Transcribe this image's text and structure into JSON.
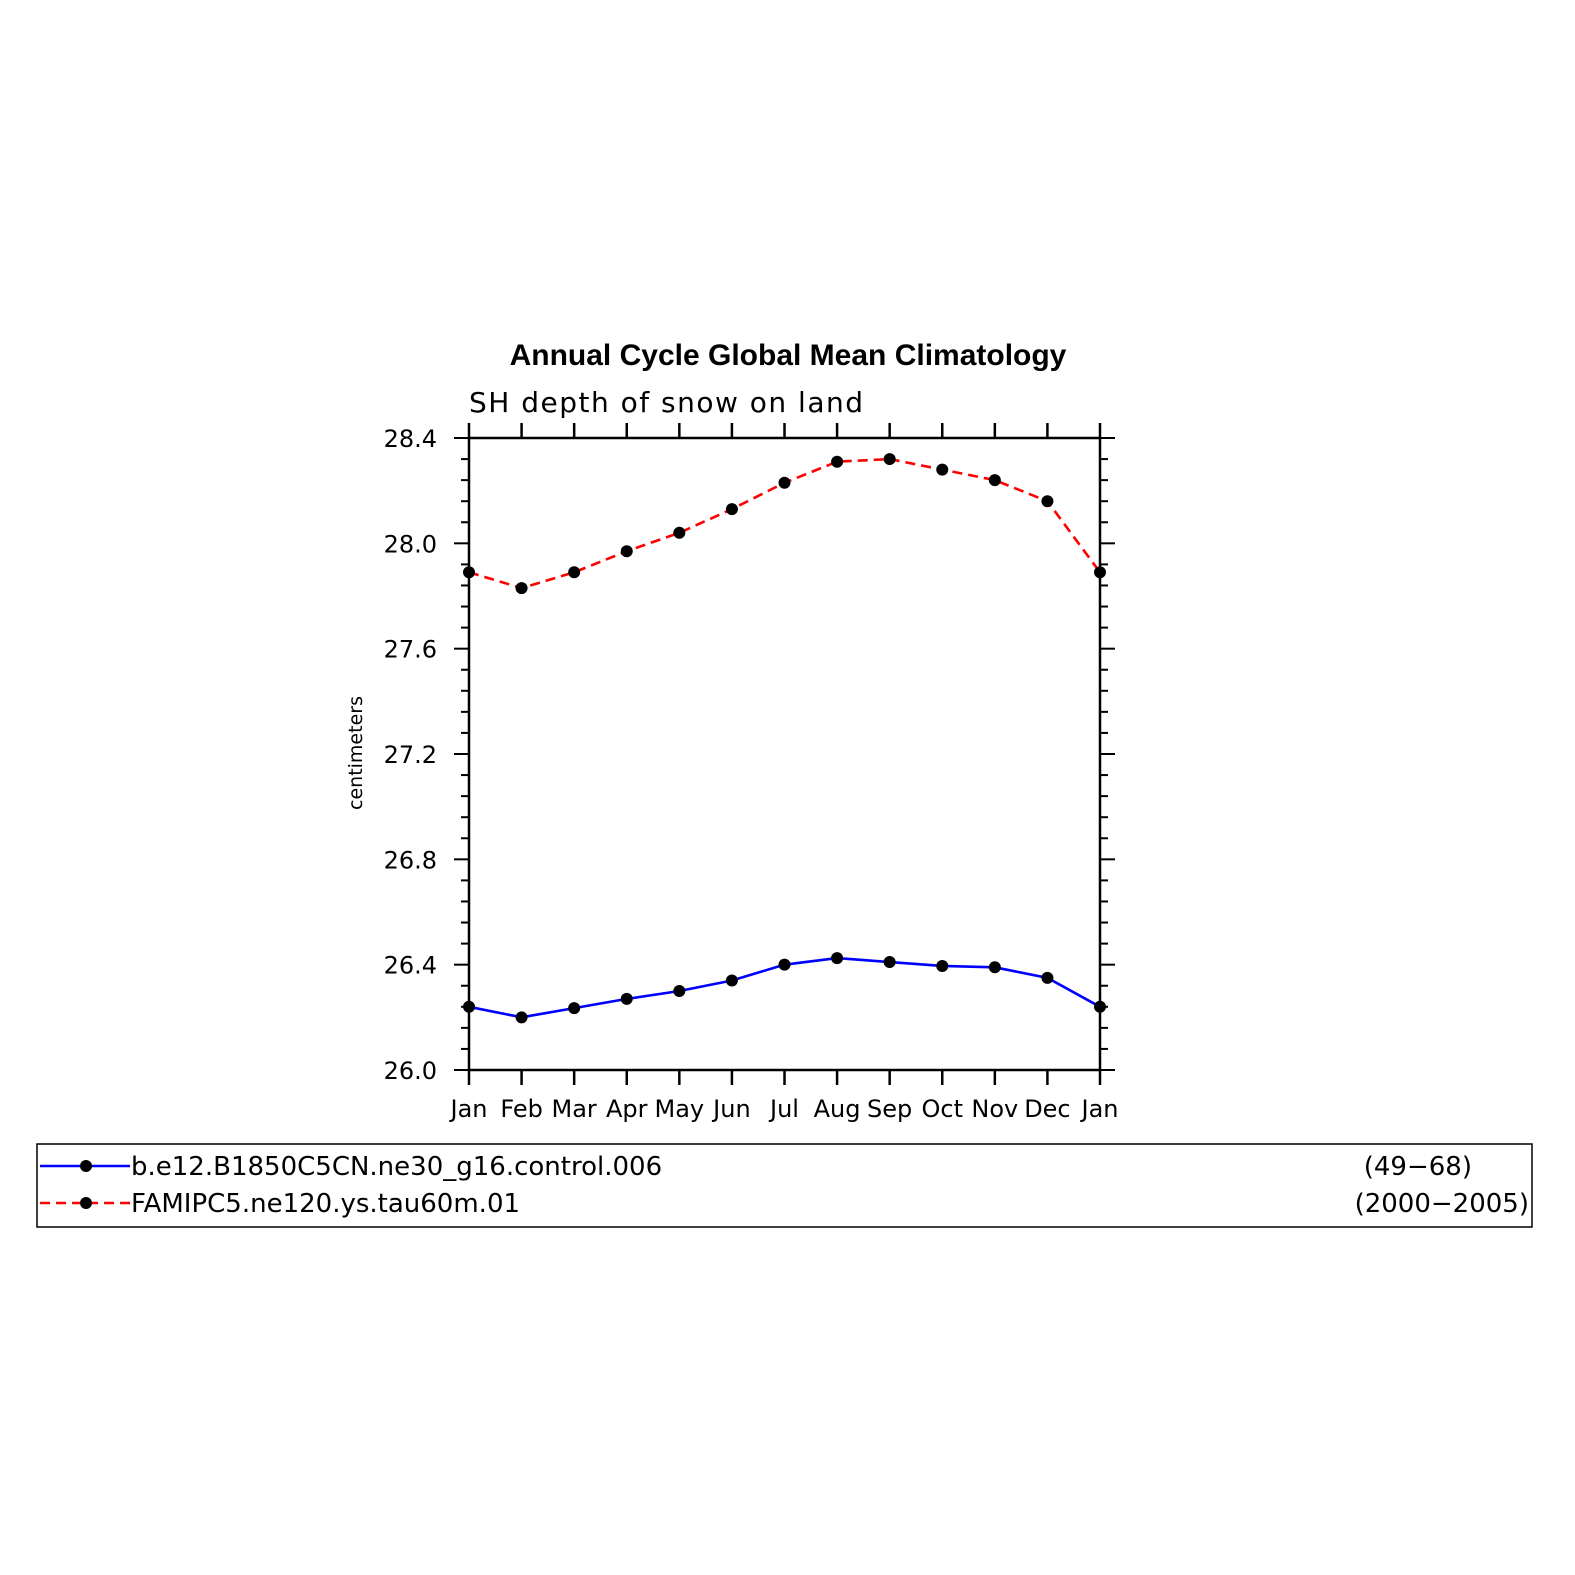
{
  "chart_data": {
    "type": "line",
    "title": "Annual Cycle Global Mean Climatology",
    "subtitle": "SH depth of snow on land",
    "ylabel": "centimeters",
    "xlabel": "",
    "categories": [
      "Jan",
      "Feb",
      "Mar",
      "Apr",
      "May",
      "Jun",
      "Jul",
      "Aug",
      "Sep",
      "Oct",
      "Nov",
      "Dec",
      "Jan"
    ],
    "ylim": [
      26.0,
      28.4
    ],
    "yticks": [
      "26.0",
      "26.4",
      "26.8",
      "27.2",
      "27.6",
      "28.0",
      "28.4"
    ],
    "grid": false,
    "legend_position": "bottom",
    "series": [
      {
        "name": "b.e12.B1850C5CN.ne30_g16.control.006",
        "years": "(49−68)",
        "color": "#0000ff",
        "dash": "solid",
        "values": [
          26.24,
          26.2,
          26.235,
          26.27,
          26.3,
          26.34,
          26.4,
          26.425,
          26.41,
          26.395,
          26.39,
          26.35,
          26.24
        ]
      },
      {
        "name": "FAMIPC5.ne120.ys.tau60m.01",
        "years": "(2000−2005)",
        "color": "#ff0000",
        "dash": "dashed",
        "values": [
          27.89,
          27.83,
          27.89,
          27.97,
          28.04,
          28.13,
          28.23,
          28.31,
          28.32,
          28.28,
          28.24,
          28.16,
          27.89
        ]
      }
    ]
  }
}
